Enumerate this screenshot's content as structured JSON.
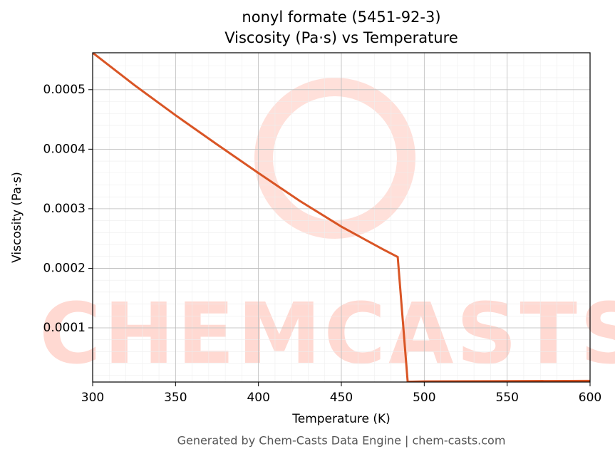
{
  "chart_data": {
    "type": "line",
    "title": "nonyl formate (5451-92-3)",
    "subtitle": "Viscosity (Pa·s) vs Temperature",
    "x_label": "Temperature (K)",
    "y_label": "Viscosity (Pa·s)",
    "watermark": "CHEMCASTS",
    "footer": "Generated by Chem-Casts Data Engine | chem-casts.com",
    "x": [
      300,
      325,
      350,
      375,
      400,
      425,
      450,
      475,
      484,
      490,
      500,
      550,
      600
    ],
    "series": [
      {
        "name": "Viscosity",
        "color": "#d95525",
        "values": [
          0.000562,
          0.000508,
          0.000457,
          0.000408,
          0.00036,
          0.000313,
          0.00027,
          0.000232,
          0.000219,
          9.5e-06,
          1e-05,
          1.05e-05,
          1.1e-05
        ]
      }
    ],
    "xlim": [
      300,
      600
    ],
    "xticks": [
      300,
      350,
      400,
      450,
      500,
      550,
      600
    ],
    "ylim": [
      9e-06,
      0.000562
    ],
    "yticks": [
      0.0001,
      0.0002,
      0.0003,
      0.0004,
      0.0005
    ],
    "grid": true
  }
}
